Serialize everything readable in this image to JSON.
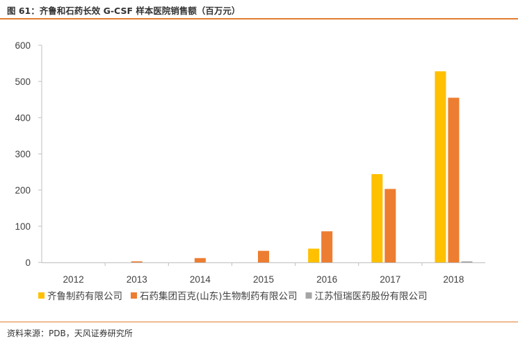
{
  "header": {
    "title": "图 61：齐鲁和石药长效 G-CSF 样本医院销售额（百万元）"
  },
  "footer": {
    "source": "资料来源：PDB，天风证券研究所"
  },
  "chart_data": {
    "type": "bar",
    "title": "图 61：齐鲁和石药长效 G-CSF 样本医院销售额（百万元）",
    "categories": [
      "2012",
      "2013",
      "2014",
      "2015",
      "2016",
      "2017",
      "2018"
    ],
    "series": [
      {
        "name": "齐鲁制药有限公司",
        "color": "#FFC000",
        "values": [
          0,
          0,
          0,
          0,
          38,
          244,
          528
        ]
      },
      {
        "name": "石药集团百克(山东)生物制药有限公司",
        "color": "#ED7D31",
        "values": [
          0,
          3,
          12,
          32,
          86,
          203,
          455
        ]
      },
      {
        "name": "江苏恒瑞医药股份有限公司",
        "color": "#A5A5A5",
        "values": [
          0,
          0,
          0,
          0,
          0,
          0,
          3
        ]
      }
    ],
    "ylim": [
      0,
      600
    ],
    "yticks": [
      0,
      100,
      200,
      300,
      400,
      500,
      600
    ],
    "grid": false,
    "legend": "bottom"
  }
}
